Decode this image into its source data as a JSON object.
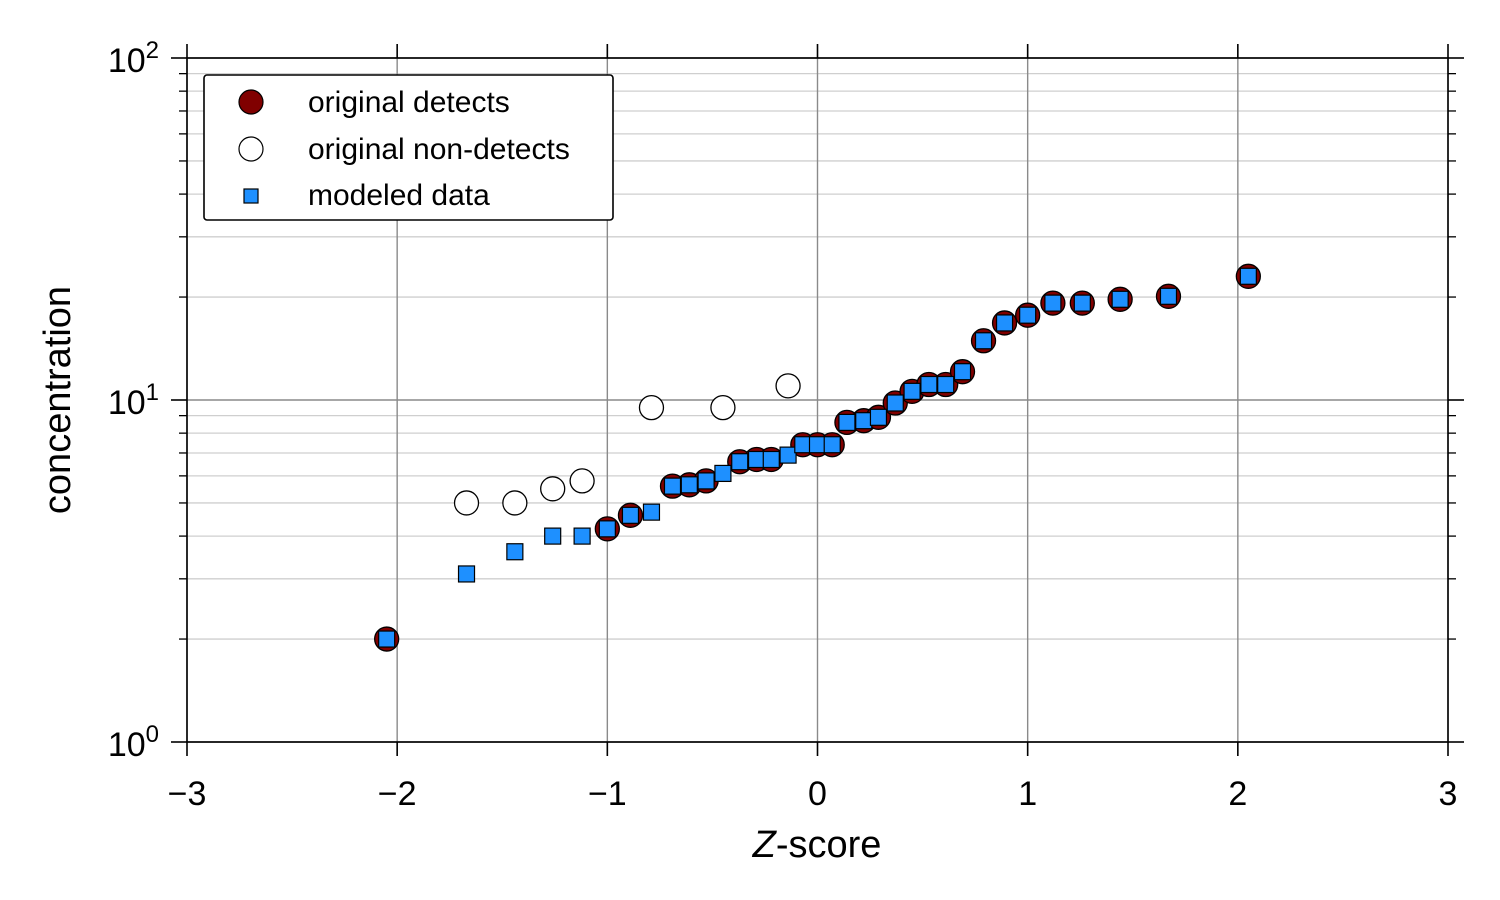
{
  "chart_data": {
    "type": "scatter",
    "xlabel_italic": "Z",
    "xlabel_rest": "-score",
    "ylabel": "concentration",
    "xlim": [
      -3,
      3
    ],
    "ylim": [
      1,
      100
    ],
    "yscale": "log",
    "grid": true,
    "legend_position": "top-left",
    "x_ticks": [
      -3,
      -2,
      -1,
      0,
      1,
      2,
      3
    ],
    "x_tick_labels": [
      "−3",
      "−2",
      "−1",
      "0",
      "1",
      "2",
      "3"
    ],
    "y_tick_labels": [
      {
        "base": "10",
        "exp": "0",
        "value": 1
      },
      {
        "base": "10",
        "exp": "1",
        "value": 10
      },
      {
        "base": "10",
        "exp": "2",
        "value": 100
      }
    ],
    "colors": {
      "detects": "#800000",
      "modeled": "#1e90ff",
      "nondetects_fill": "#ffffff",
      "edge": "#000000"
    },
    "series": [
      {
        "name": "original detects",
        "marker": "circle-filled",
        "x": [
          -2.05,
          -1.0,
          -0.89,
          -0.69,
          -0.61,
          -0.53,
          -0.37,
          -0.29,
          -0.22,
          -0.07,
          0.0,
          0.07,
          0.14,
          0.22,
          0.29,
          0.37,
          0.45,
          0.53,
          0.61,
          0.69,
          0.79,
          0.89,
          1.0,
          1.12,
          1.26,
          1.44,
          1.67,
          2.05
        ],
        "y": [
          2.0,
          4.2,
          4.6,
          5.6,
          5.65,
          5.8,
          6.6,
          6.7,
          6.7,
          7.4,
          7.4,
          7.4,
          8.6,
          8.7,
          8.9,
          9.8,
          10.6,
          11.1,
          11.1,
          12.1,
          14.9,
          16.8,
          17.7,
          19.2,
          19.2,
          19.7,
          20.1,
          23.0
        ]
      },
      {
        "name": "original non-detects",
        "marker": "circle-open",
        "x": [
          -1.67,
          -1.44,
          -1.26,
          -1.12,
          -0.79,
          -0.45,
          -0.14
        ],
        "y": [
          5.0,
          5.0,
          5.5,
          5.8,
          9.5,
          9.5,
          11.0
        ]
      },
      {
        "name": "modeled data",
        "marker": "square",
        "x": [
          -2.05,
          -1.67,
          -1.44,
          -1.26,
          -1.12,
          -1.0,
          -0.89,
          -0.79,
          -0.69,
          -0.61,
          -0.53,
          -0.45,
          -0.37,
          -0.29,
          -0.22,
          -0.14,
          -0.07,
          0.0,
          0.07,
          0.14,
          0.22,
          0.29,
          0.37,
          0.45,
          0.53,
          0.61,
          0.69,
          0.79,
          0.89,
          1.0,
          1.12,
          1.26,
          1.44,
          1.67,
          2.05
        ],
        "y": [
          2.0,
          3.1,
          3.6,
          4.0,
          4.0,
          4.2,
          4.6,
          4.7,
          5.6,
          5.65,
          5.8,
          6.1,
          6.6,
          6.7,
          6.7,
          6.9,
          7.4,
          7.4,
          7.4,
          8.6,
          8.7,
          8.9,
          9.8,
          10.6,
          11.1,
          11.1,
          12.1,
          14.9,
          16.8,
          17.7,
          19.2,
          19.2,
          19.7,
          20.1,
          23.0
        ]
      }
    ]
  }
}
